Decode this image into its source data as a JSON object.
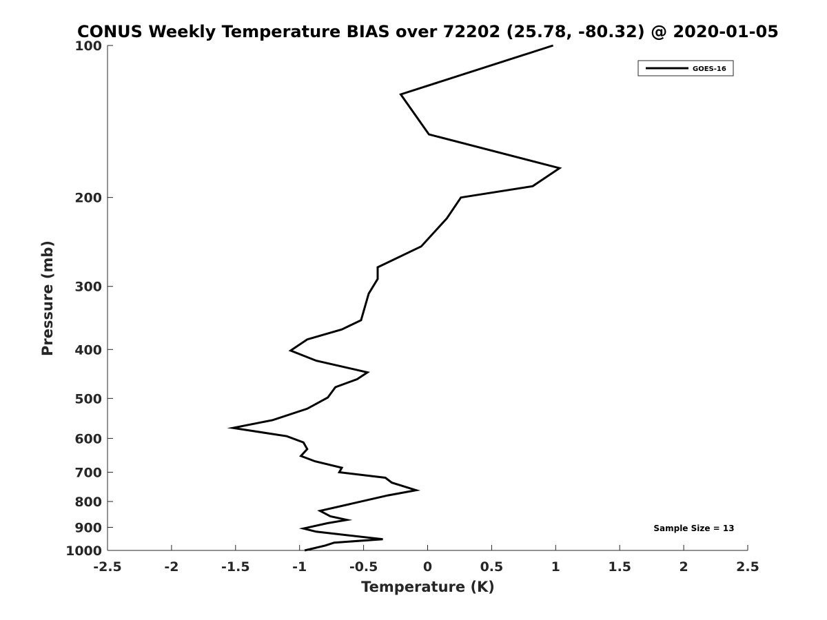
{
  "chart_data": {
    "type": "line",
    "title": "CONUS Weekly Temperature BIAS over 72202 (25.78, -80.32) @ 2020-01-05",
    "xlabel": "Temperature (K)",
    "ylabel": "Pressure (mb)",
    "xlim": [
      -2.5,
      2.5
    ],
    "ylim": [
      1000,
      100
    ],
    "y_scale": "log",
    "grid": false,
    "legend_position": "top-right",
    "x_ticks": [
      "-2.5",
      "-2",
      "-1.5",
      "-1",
      "-0.5",
      "0",
      "0.5",
      "1",
      "1.5",
      "2",
      "2.5"
    ],
    "y_ticks": [
      "100",
      "200",
      "300",
      "400",
      "500",
      "600",
      "700",
      "800",
      "900",
      "1000"
    ],
    "annotation": "Sample Size = 13",
    "series": [
      {
        "name": "GOES-16",
        "color": "#000000",
        "points": [
          {
            "x": 0.98,
            "p": 100
          },
          {
            "x": -0.21,
            "p": 125
          },
          {
            "x": 0.01,
            "p": 150
          },
          {
            "x": 1.03,
            "p": 175
          },
          {
            "x": 0.82,
            "p": 190
          },
          {
            "x": 0.26,
            "p": 200
          },
          {
            "x": 0.15,
            "p": 220
          },
          {
            "x": -0.05,
            "p": 250
          },
          {
            "x": -0.39,
            "p": 275
          },
          {
            "x": -0.39,
            "p": 290
          },
          {
            "x": -0.46,
            "p": 310
          },
          {
            "x": -0.52,
            "p": 350
          },
          {
            "x": -0.67,
            "p": 365
          },
          {
            "x": -0.94,
            "p": 382
          },
          {
            "x": -1.07,
            "p": 402
          },
          {
            "x": -0.87,
            "p": 421
          },
          {
            "x": -0.47,
            "p": 444
          },
          {
            "x": -0.55,
            "p": 458
          },
          {
            "x": -0.72,
            "p": 475
          },
          {
            "x": -0.78,
            "p": 498
          },
          {
            "x": -0.94,
            "p": 524
          },
          {
            "x": -1.21,
            "p": 552
          },
          {
            "x": -1.52,
            "p": 572
          },
          {
            "x": -1.1,
            "p": 594
          },
          {
            "x": -0.97,
            "p": 611
          },
          {
            "x": -0.94,
            "p": 630
          },
          {
            "x": -0.99,
            "p": 650
          },
          {
            "x": -0.88,
            "p": 666
          },
          {
            "x": -0.67,
            "p": 686
          },
          {
            "x": -0.69,
            "p": 700
          },
          {
            "x": -0.33,
            "p": 718
          },
          {
            "x": -0.28,
            "p": 734
          },
          {
            "x": -0.09,
            "p": 760
          },
          {
            "x": -0.31,
            "p": 778
          },
          {
            "x": -0.84,
            "p": 835
          },
          {
            "x": -0.76,
            "p": 856
          },
          {
            "x": -0.63,
            "p": 870
          },
          {
            "x": -0.78,
            "p": 883
          },
          {
            "x": -0.97,
            "p": 905
          },
          {
            "x": -0.87,
            "p": 918
          },
          {
            "x": -0.35,
            "p": 950
          },
          {
            "x": -0.73,
            "p": 965
          },
          {
            "x": -0.8,
            "p": 978
          },
          {
            "x": -0.96,
            "p": 1000
          }
        ]
      }
    ]
  }
}
